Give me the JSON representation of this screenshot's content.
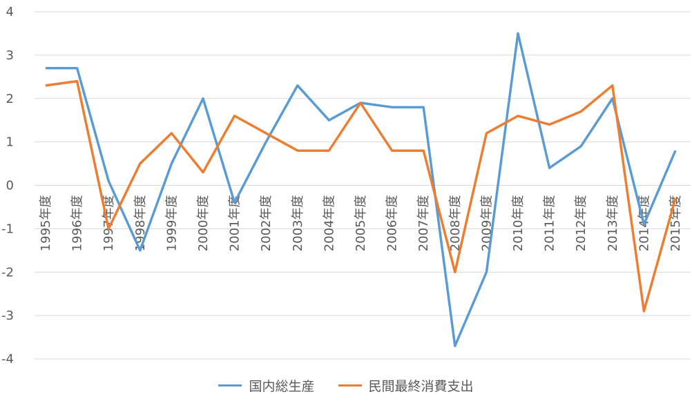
{
  "chart_data": {
    "type": "line",
    "x": [
      "1995年度",
      "1996年度",
      "1997年度",
      "1998年度",
      "1999年度",
      "2000年度",
      "2001年度",
      "2002年度",
      "2003年度",
      "2004年度",
      "2005年度",
      "2006年度",
      "2007年度",
      "2008年度",
      "2009年度",
      "2010年度",
      "2011年度",
      "2012年度",
      "2013年度",
      "2014年度",
      "2015年度"
    ],
    "series": [
      {
        "name": "国内総生産",
        "color": "#5b9bd5",
        "values": [
          2.7,
          2.7,
          0.1,
          -1.5,
          0.5,
          2.0,
          -0.4,
          1.0,
          2.3,
          1.5,
          1.9,
          1.8,
          1.8,
          -3.7,
          -2.0,
          3.5,
          0.4,
          0.9,
          2.0,
          -0.9,
          0.8
        ]
      },
      {
        "name": "民間最終消費支出",
        "color": "#ed7d31",
        "values": [
          2.3,
          2.4,
          -1.0,
          0.5,
          1.2,
          0.3,
          1.6,
          1.2,
          0.8,
          0.8,
          1.9,
          0.8,
          0.8,
          -2.0,
          1.2,
          1.6,
          1.4,
          1.7,
          2.3,
          -2.9,
          -0.3
        ]
      }
    ],
    "yticks": [
      "4",
      "3",
      "2",
      "1",
      "0",
      "-1",
      "-2",
      "-3",
      "-4"
    ],
    "ylim": [
      -4,
      4
    ],
    "grid": true,
    "legend": "bottom",
    "title": "",
    "xlabel": "",
    "ylabel": ""
  }
}
